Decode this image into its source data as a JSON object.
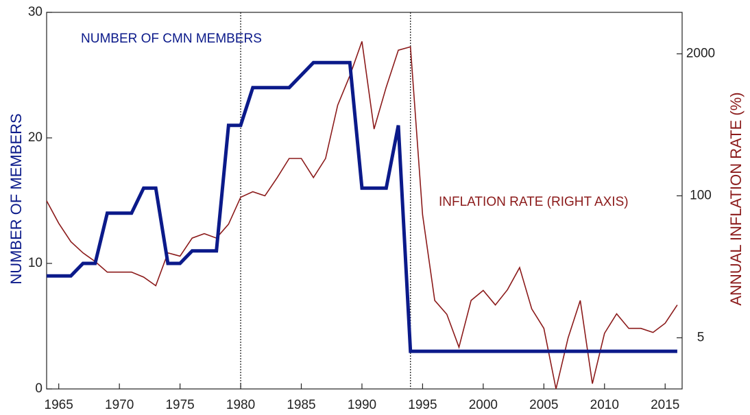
{
  "chart_data": {
    "type": "line",
    "ylabel": "NUMBER OF MEMBERS",
    "y2label": "ANNUAL INFLATION RATE (%)",
    "x": [
      1964,
      1965,
      1966,
      1967,
      1968,
      1969,
      1970,
      1971,
      1972,
      1973,
      1974,
      1975,
      1976,
      1977,
      1978,
      1979,
      1980,
      1981,
      1982,
      1983,
      1984,
      1985,
      1986,
      1987,
      1988,
      1989,
      1990,
      1991,
      1992,
      1993,
      1994,
      1995,
      1996,
      1997,
      1998,
      1999,
      2000,
      2001,
      2002,
      2003,
      2004,
      2005,
      2006,
      2007,
      2008,
      2009,
      2010,
      2011,
      2012,
      2013,
      2014,
      2015,
      2016
    ],
    "series": [
      {
        "name": "NUMBER OF CMN MEMBERS",
        "color": "#0b1a8a",
        "axis": "y",
        "values": [
          9,
          9,
          9,
          10,
          10,
          14,
          14,
          14,
          16,
          16,
          10,
          10,
          11,
          11,
          11,
          21,
          21,
          24,
          24,
          24,
          24,
          25,
          26,
          26,
          26,
          26,
          16,
          16,
          16,
          21,
          3,
          3,
          3,
          3,
          3,
          3,
          3,
          3,
          3,
          3,
          3,
          3,
          3,
          3,
          3,
          3,
          3,
          3,
          3,
          3,
          3,
          3,
          3
        ]
      },
      {
        "name": "INFLATION RATE (RIGHT AXIS)",
        "color": "#8b1a1a",
        "axis": "y2",
        "values": [
          90,
          56,
          38,
          30,
          25,
          20,
          20,
          20,
          18,
          15,
          30,
          28,
          41,
          45,
          41,
          55,
          97,
          109,
          100,
          146,
          220,
          220,
          147,
          220,
          677,
          1260,
          2600,
          409,
          990,
          2160,
          2320,
          67,
          11,
          8.2,
          4.1,
          11,
          13.6,
          10,
          13.8,
          22,
          9.2,
          6.1,
          1.7,
          5,
          11,
          1.9,
          5.5,
          8.3,
          6.1,
          6.1,
          5.6,
          6.8,
          10
        ]
      }
    ],
    "xlim": [
      1964,
      2016.4
    ],
    "xticks": [
      1965,
      1970,
      1975,
      1980,
      1985,
      1990,
      1995,
      2000,
      2005,
      2010,
      2015
    ],
    "ylim": [
      0,
      30
    ],
    "yticks": [
      0,
      10,
      20,
      30
    ],
    "y2lim": [
      1.7,
      4800
    ],
    "y2ticks": [
      5,
      100,
      2000
    ],
    "y2log": true,
    "vlines": [
      1980,
      1994
    ]
  }
}
